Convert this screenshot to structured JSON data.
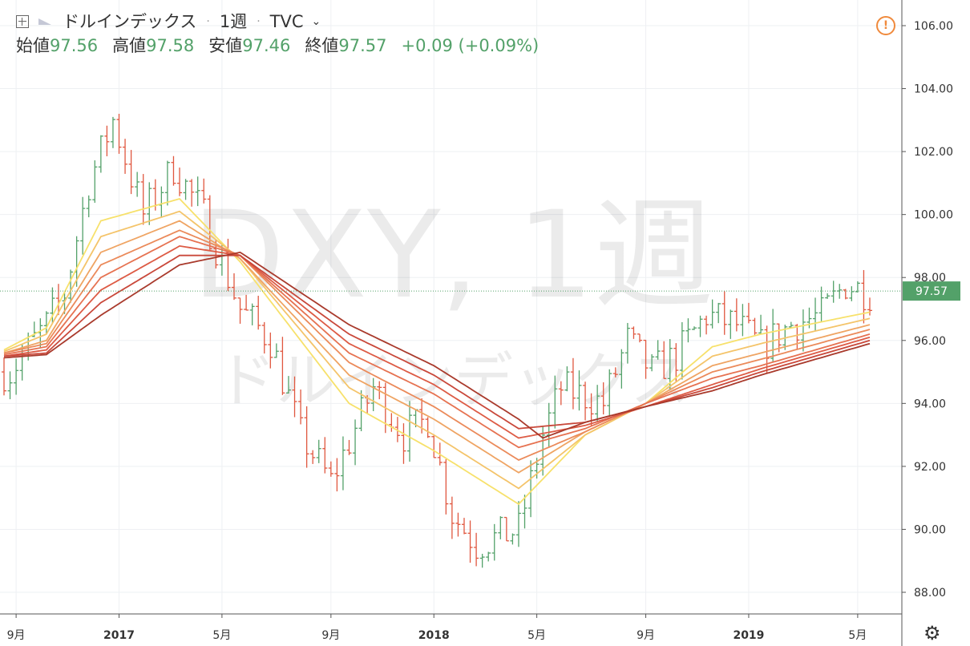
{
  "header": {
    "symbol_name": "ドルインデックス",
    "interval": "1週",
    "exchange": "TVC",
    "open_label": "始値",
    "open_value": "97.56",
    "high_label": "高値",
    "high_value": "97.58",
    "low_label": "安値",
    "low_value": "97.46",
    "close_label": "終値",
    "close_value": "97.57",
    "change": "+0.09 (+0.09%)"
  },
  "watermark": {
    "symbol": "DXY, 1週",
    "name": "ドルインデックス"
  },
  "colors": {
    "up": "#53a169",
    "down": "#e0573f",
    "grid": "#eef0f3",
    "price_line": "#53a169"
  },
  "chart_data": {
    "type": "line",
    "y_axis": {
      "range": [
        87.5,
        106.5
      ],
      "ticks": [
        "106.00",
        "104.00",
        "102.00",
        "100.00",
        "98.00",
        "96.00",
        "94.00",
        "92.00",
        "90.00",
        "88.00"
      ]
    },
    "x_axis": {
      "start": "2016-08-22",
      "end": "2019-05-20",
      "ticks": [
        {
          "label": "9月",
          "date": "2016-09-05",
          "bold": false
        },
        {
          "label": "2017",
          "date": "2017-01-02",
          "bold": true
        },
        {
          "label": "5月",
          "date": "2017-05-01",
          "bold": false
        },
        {
          "label": "9月",
          "date": "2017-09-04",
          "bold": false
        },
        {
          "label": "2018",
          "date": "2018-01-01",
          "bold": true
        },
        {
          "label": "5月",
          "date": "2018-04-30",
          "bold": false
        },
        {
          "label": "9月",
          "date": "2018-09-03",
          "bold": false
        },
        {
          "label": "2019",
          "date": "2018-12-31",
          "bold": true
        },
        {
          "label": "5月",
          "date": "2019-05-06",
          "bold": false
        }
      ]
    },
    "current_price": {
      "value": 97.57,
      "label": "97.57"
    },
    "bar_close_anchors": [
      {
        "date": "2016-08-29",
        "close": 95.0
      },
      {
        "date": "2016-10-10",
        "close": 96.5
      },
      {
        "date": "2016-10-31",
        "close": 97.5
      },
      {
        "date": "2016-11-28",
        "close": 101.0
      },
      {
        "date": "2016-12-26",
        "close": 103.0
      },
      {
        "date": "2017-01-30",
        "close": 100.0
      },
      {
        "date": "2017-03-06",
        "close": 101.5
      },
      {
        "date": "2017-04-10",
        "close": 100.0
      },
      {
        "date": "2017-05-22",
        "close": 97.0
      },
      {
        "date": "2017-06-26",
        "close": 96.0
      },
      {
        "date": "2017-07-31",
        "close": 93.0
      },
      {
        "date": "2017-09-04",
        "close": 91.5
      },
      {
        "date": "2017-10-23",
        "close": 94.5
      },
      {
        "date": "2017-11-27",
        "close": 93.0
      },
      {
        "date": "2017-12-25",
        "close": 93.5
      },
      {
        "date": "2018-01-22",
        "close": 90.5
      },
      {
        "date": "2018-02-19",
        "close": 89.5
      },
      {
        "date": "2018-04-09",
        "close": 90.0
      },
      {
        "date": "2018-05-07",
        "close": 93.0
      },
      {
        "date": "2018-05-28",
        "close": 94.5
      },
      {
        "date": "2018-07-16",
        "close": 94.0
      },
      {
        "date": "2018-08-13",
        "close": 96.0
      },
      {
        "date": "2018-09-10",
        "close": 95.0
      },
      {
        "date": "2018-10-08",
        "close": 95.5
      },
      {
        "date": "2018-11-12",
        "close": 96.8
      },
      {
        "date": "2018-12-17",
        "close": 96.5
      },
      {
        "date": "2019-01-14",
        "close": 95.8
      },
      {
        "date": "2019-02-18",
        "close": 96.5
      },
      {
        "date": "2019-03-25",
        "close": 96.8
      },
      {
        "date": "2019-04-22",
        "close": 97.8
      },
      {
        "date": "2019-05-20",
        "close": 97.5
      }
    ],
    "ribbon_series": [
      {
        "color": "#f7e16b",
        "points": [
          [
            "2016-08-22",
            95.7
          ],
          [
            "2016-10-10",
            96.4
          ],
          [
            "2016-12-12",
            99.8
          ],
          [
            "2017-03-13",
            100.5
          ],
          [
            "2017-05-22",
            98.5
          ],
          [
            "2017-09-25",
            94.0
          ],
          [
            "2018-01-01",
            92.5
          ],
          [
            "2018-04-09",
            90.8
          ],
          [
            "2018-06-25",
            93.0
          ],
          [
            "2018-09-03",
            94.0
          ],
          [
            "2018-11-19",
            95.8
          ],
          [
            "2019-01-14",
            96.2
          ],
          [
            "2019-05-20",
            96.9
          ]
        ]
      },
      {
        "color": "#f4c46a",
        "points": [
          [
            "2016-08-22",
            95.65
          ],
          [
            "2016-10-10",
            96.2
          ],
          [
            "2016-12-12",
            99.3
          ],
          [
            "2017-03-13",
            100.1
          ],
          [
            "2017-05-22",
            98.6
          ],
          [
            "2017-09-25",
            94.5
          ],
          [
            "2018-01-01",
            93.0
          ],
          [
            "2018-04-09",
            91.3
          ],
          [
            "2018-06-25",
            93.0
          ],
          [
            "2018-09-03",
            94.0
          ],
          [
            "2018-11-19",
            95.5
          ],
          [
            "2019-01-14",
            95.9
          ],
          [
            "2019-05-20",
            96.7
          ]
        ]
      },
      {
        "color": "#efa463",
        "points": [
          [
            "2016-08-22",
            95.6
          ],
          [
            "2016-10-10",
            96.0
          ],
          [
            "2016-12-12",
            98.8
          ],
          [
            "2017-03-13",
            99.8
          ],
          [
            "2017-05-22",
            98.6
          ],
          [
            "2017-09-25",
            94.9
          ],
          [
            "2018-01-01",
            93.5
          ],
          [
            "2018-04-09",
            91.8
          ],
          [
            "2018-06-25",
            93.1
          ],
          [
            "2018-09-03",
            94.0
          ],
          [
            "2018-11-19",
            95.2
          ],
          [
            "2019-01-14",
            95.6
          ],
          [
            "2019-05-20",
            96.5
          ]
        ]
      },
      {
        "color": "#eb8a5a",
        "points": [
          [
            "2016-08-22",
            95.6
          ],
          [
            "2016-10-10",
            95.9
          ],
          [
            "2016-12-12",
            98.4
          ],
          [
            "2017-03-13",
            99.5
          ],
          [
            "2017-05-22",
            98.7
          ],
          [
            "2017-09-25",
            95.3
          ],
          [
            "2018-01-01",
            93.9
          ],
          [
            "2018-04-09",
            92.2
          ],
          [
            "2018-06-25",
            93.1
          ],
          [
            "2018-09-03",
            94.0
          ],
          [
            "2018-11-19",
            95.0
          ],
          [
            "2019-01-14",
            95.4
          ],
          [
            "2019-05-20",
            96.35
          ]
        ]
      },
      {
        "color": "#e67251",
        "points": [
          [
            "2016-08-22",
            95.55
          ],
          [
            "2016-10-10",
            95.8
          ],
          [
            "2016-12-12",
            98.0
          ],
          [
            "2017-03-13",
            99.3
          ],
          [
            "2017-05-22",
            98.7
          ],
          [
            "2017-09-25",
            95.6
          ],
          [
            "2018-01-01",
            94.3
          ],
          [
            "2018-04-09",
            92.6
          ],
          [
            "2018-06-25",
            93.2
          ],
          [
            "2018-09-03",
            94.0
          ],
          [
            "2018-11-19",
            94.8
          ],
          [
            "2019-01-14",
            95.2
          ],
          [
            "2019-05-20",
            96.2
          ]
        ]
      },
      {
        "color": "#dd5b45",
        "points": [
          [
            "2016-08-22",
            95.5
          ],
          [
            "2016-10-10",
            95.7
          ],
          [
            "2016-12-12",
            97.6
          ],
          [
            "2017-03-13",
            99.0
          ],
          [
            "2017-05-22",
            98.7
          ],
          [
            "2017-09-25",
            95.9
          ],
          [
            "2018-01-01",
            94.6
          ],
          [
            "2018-04-09",
            92.9
          ],
          [
            "2018-06-25",
            93.3
          ],
          [
            "2018-09-03",
            93.9
          ],
          [
            "2018-11-19",
            94.6
          ],
          [
            "2019-01-14",
            95.1
          ],
          [
            "2019-05-20",
            96.1
          ]
        ]
      },
      {
        "color": "#c9483a",
        "points": [
          [
            "2016-08-22",
            95.5
          ],
          [
            "2016-10-10",
            95.6
          ],
          [
            "2016-12-12",
            97.2
          ],
          [
            "2017-03-13",
            98.7
          ],
          [
            "2017-05-22",
            98.7
          ],
          [
            "2017-09-25",
            96.2
          ],
          [
            "2018-01-01",
            94.9
          ],
          [
            "2018-04-09",
            93.2
          ],
          [
            "2018-06-25",
            93.4
          ],
          [
            "2018-09-03",
            93.9
          ],
          [
            "2018-11-19",
            94.5
          ],
          [
            "2019-01-14",
            95.0
          ],
          [
            "2019-05-20",
            96.0
          ]
        ]
      },
      {
        "color": "#a93a2c",
        "points": [
          [
            "2016-08-22",
            95.45
          ],
          [
            "2016-10-10",
            95.55
          ],
          [
            "2016-12-12",
            96.8
          ],
          [
            "2017-03-13",
            98.4
          ],
          [
            "2017-05-22",
            98.8
          ],
          [
            "2017-09-25",
            96.5
          ],
          [
            "2018-01-01",
            95.2
          ],
          [
            "2018-04-09",
            93.5
          ],
          [
            "2018-05-07",
            92.9
          ],
          [
            "2018-06-25",
            93.4
          ],
          [
            "2018-09-03",
            93.9
          ],
          [
            "2018-11-19",
            94.4
          ],
          [
            "2019-01-14",
            94.9
          ],
          [
            "2019-05-20",
            95.9
          ]
        ]
      }
    ]
  }
}
